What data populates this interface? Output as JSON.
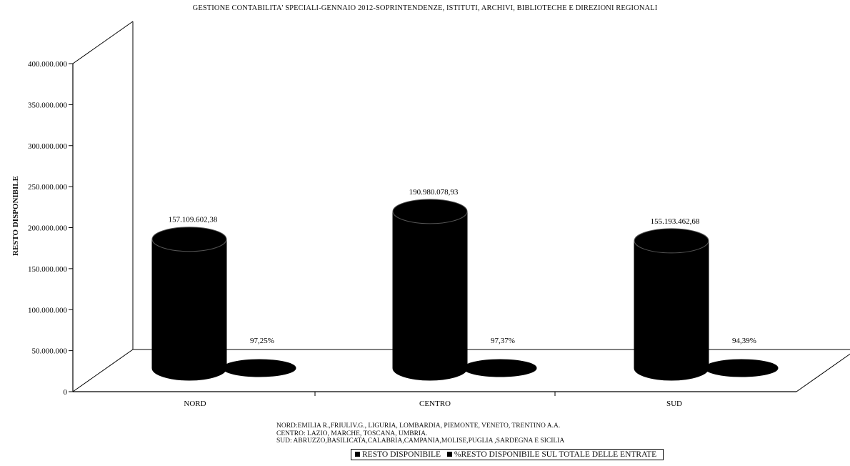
{
  "chart_data": {
    "type": "bar",
    "title": "GESTIONE CONTABILITA' SPECIALI-GENNAIO 2012-SOPRINTENDENZE, ISTITUTI, ARCHIVI, BIBLIOTECHE E DIREZIONI REGIONALI",
    "xlabel": "",
    "ylabel": "RESTO DISPONIBILE",
    "categories": [
      "NORD",
      "CENTRO",
      "SUD"
    ],
    "ylim": [
      0,
      400000000
    ],
    "yticks": [
      0,
      50000000,
      100000000,
      150000000,
      200000000,
      250000000,
      300000000,
      350000000,
      400000000
    ],
    "ytick_labels": [
      "0",
      "50.000.000",
      "100.000.000",
      "150.000.000",
      "200.000.000",
      "250.000.000",
      "300.000.000",
      "350.000.000",
      "400.000.000"
    ],
    "series": [
      {
        "name": "RESTO DISPONIBILE",
        "values": [
          157109602.38,
          190980078.93,
          155193462.68
        ],
        "labels": [
          "157.109.602,38",
          "190.980.078,93",
          "155.193.462,68"
        ]
      },
      {
        "name": "%RESTO DISPONIBILE SUL TOTALE DELLE ENTRATE",
        "values": [
          0.9725,
          0.9737,
          0.9439
        ],
        "labels": [
          "97,25%",
          "97,37%",
          "94,39%"
        ]
      }
    ],
    "grid": false,
    "legend": "bottom",
    "bar_shape": "cylinder-3d",
    "colors": {
      "bars": "#000000",
      "axis": "#000000",
      "background": "#ffffff"
    }
  },
  "notes": [
    "NORD:EMILIA R.,FRIULIV.G., LIGURIA, LOMBARDIA, PIEMONTE, VENETO, TRENTINO A.A.",
    "CENTRO: LAZIO, MARCHE, TOSCANA, UMBRIA.",
    "SUD: ABRUZZO,BASILICATA,CALABRIA,CAMPANIA,MOLISE,PUGLIA ,SARDEGNA E SICILIA"
  ]
}
